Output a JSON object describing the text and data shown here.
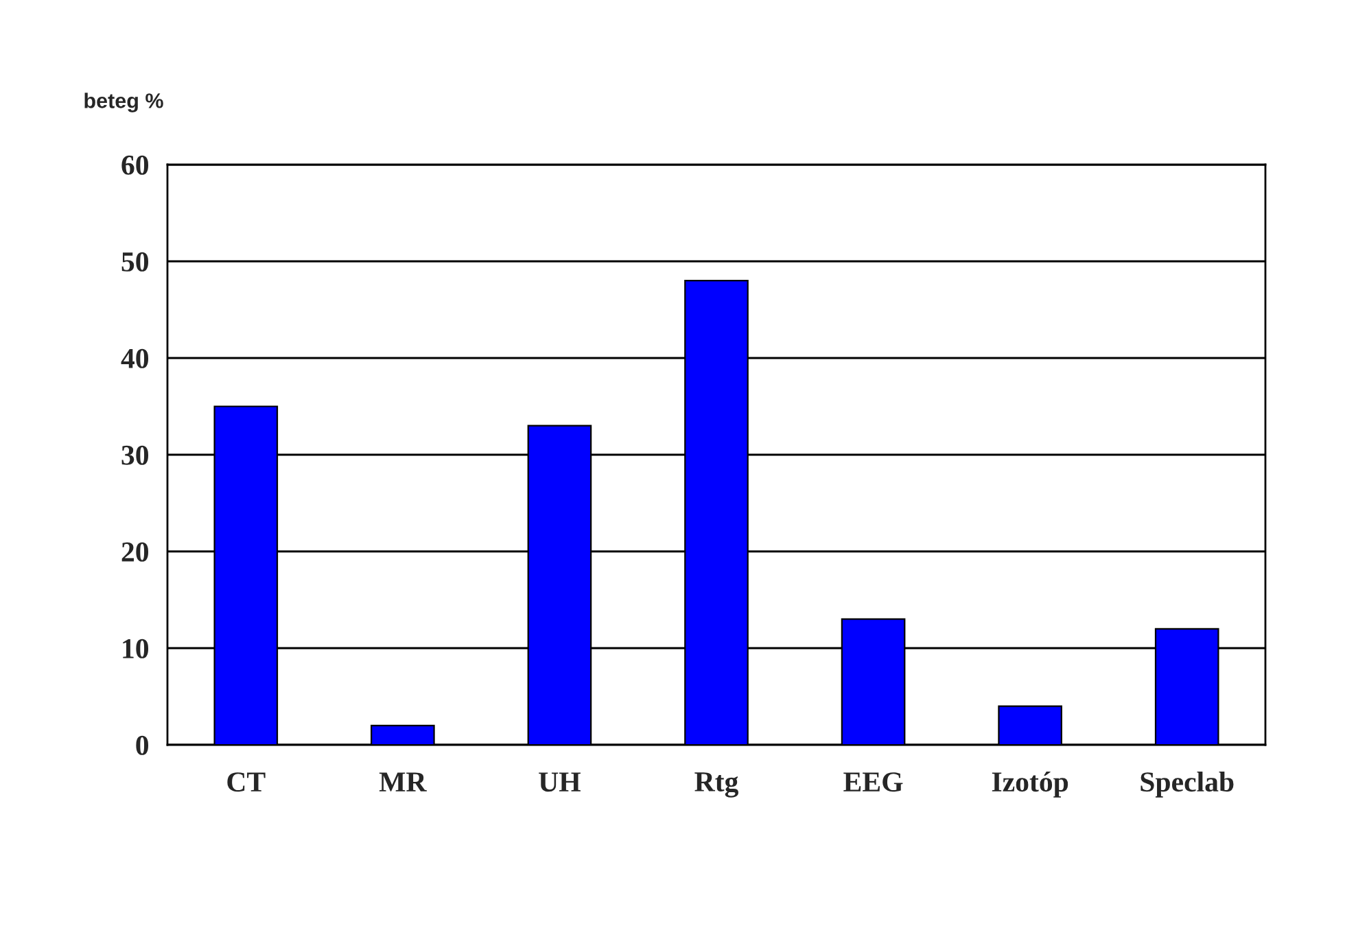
{
  "chart_data": {
    "type": "bar",
    "ylabel": "beteg %",
    "categories": [
      "CT",
      "MR",
      "UH",
      "Rtg",
      "EEG",
      "Izotóp",
      "Speclab"
    ],
    "values": [
      35,
      2,
      33,
      48,
      13,
      4,
      12
    ],
    "color": "#0000ff",
    "ylim": [
      0,
      60
    ],
    "yticks": [
      0,
      10,
      20,
      30,
      40,
      50,
      60
    ],
    "grid": "y"
  }
}
